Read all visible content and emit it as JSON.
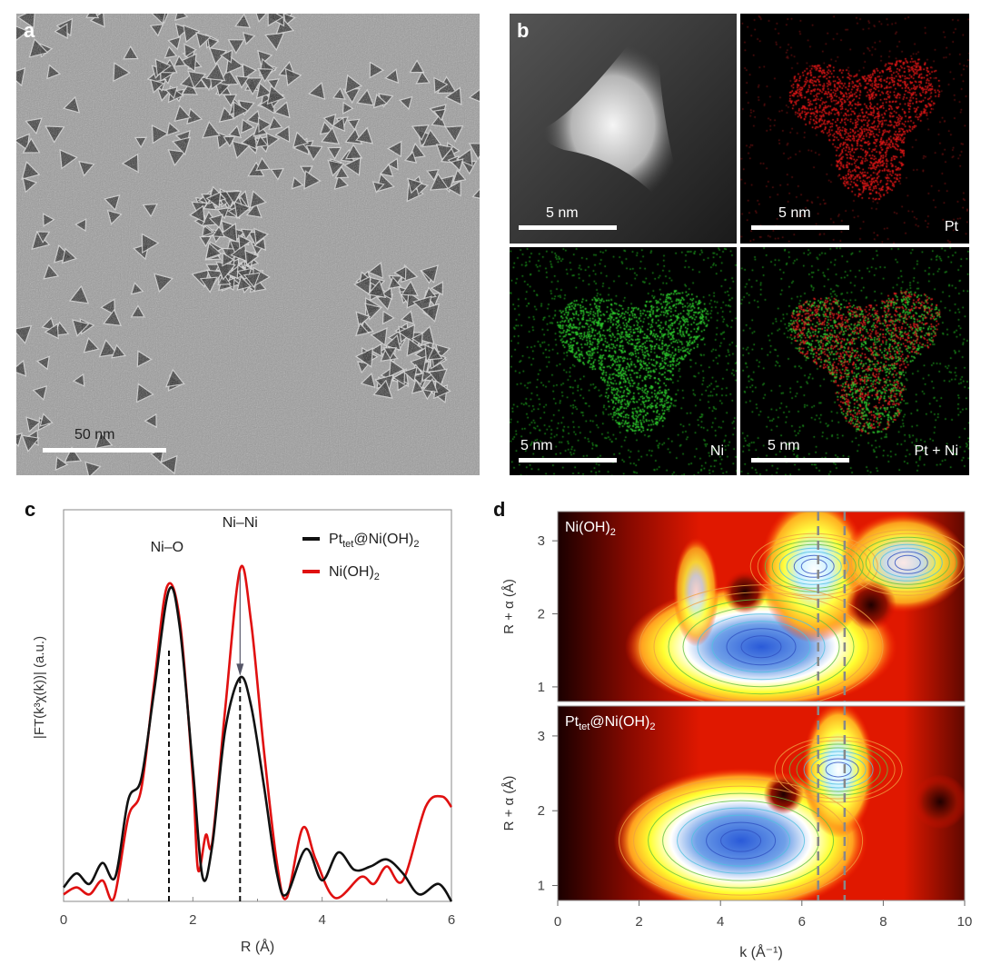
{
  "panels": {
    "a": {
      "label": "a",
      "scalebar": "50 nm"
    },
    "b": {
      "label": "b",
      "tiles": [
        {
          "scalebar": "5 nm",
          "element": ""
        },
        {
          "scalebar": "5 nm",
          "element": "Pt"
        },
        {
          "scalebar": "5 nm",
          "element": "Ni"
        },
        {
          "scalebar": "5 nm",
          "element": "Pt + Ni"
        }
      ]
    },
    "c": {
      "label": "c"
    },
    "d": {
      "label": "d"
    }
  },
  "colors": {
    "black_series": "#111111",
    "red_series": "#e01010",
    "pt_map": "#ff2020",
    "ni_map": "#30e030"
  },
  "chart_data": [
    {
      "type": "line",
      "panel": "c",
      "xlabel": "R (Å)",
      "ylabel": "|FT(k³χ(k))| (a.u.)",
      "xlim": [
        0,
        6
      ],
      "ylim": [
        0,
        1.12
      ],
      "xticks": [
        "0",
        "2",
        "4",
        "6"
      ],
      "annotations": [
        "Ni–O",
        "Ni–Ni"
      ],
      "legend_position": "top-right",
      "series": [
        {
          "name": "Pt_tet@Ni(OH)2",
          "legend_main": "Pt",
          "legend_sub": "tet",
          "legend_rest": "@Ni(OH)",
          "legend_sub2": "2",
          "color": "#111111",
          "x": [
            0,
            0.2,
            0.4,
            0.6,
            0.8,
            1.0,
            1.2,
            1.4,
            1.63,
            1.8,
            2.0,
            2.15,
            2.3,
            2.5,
            2.73,
            2.9,
            3.1,
            3.3,
            3.45,
            3.75,
            4.0,
            4.25,
            4.5,
            4.75,
            5.0,
            5.25,
            5.5,
            5.8,
            6.0
          ],
          "y": [
            0.04,
            0.08,
            0.05,
            0.11,
            0.07,
            0.29,
            0.35,
            0.6,
            0.89,
            0.78,
            0.38,
            0.07,
            0.16,
            0.49,
            0.64,
            0.56,
            0.33,
            0.08,
            0.02,
            0.15,
            0.06,
            0.14,
            0.09,
            0.1,
            0.12,
            0.08,
            0.02,
            0.05,
            0.0
          ]
        },
        {
          "name": "Ni(OH)2",
          "legend_main": "Ni(OH)",
          "legend_sub2": "2",
          "color": "#e01010",
          "x": [
            0,
            0.2,
            0.4,
            0.6,
            0.78,
            1.0,
            1.2,
            1.4,
            1.6,
            1.8,
            2.0,
            2.08,
            2.2,
            2.3,
            2.5,
            2.73,
            2.9,
            3.1,
            3.3,
            3.45,
            3.7,
            3.9,
            4.2,
            4.6,
            4.8,
            5.0,
            5.25,
            5.6,
            5.85,
            6.0
          ],
          "y": [
            0.02,
            0.04,
            0.02,
            0.06,
            0.01,
            0.24,
            0.32,
            0.62,
            0.9,
            0.8,
            0.35,
            0.09,
            0.19,
            0.17,
            0.55,
            0.95,
            0.8,
            0.43,
            0.11,
            0.01,
            0.21,
            0.12,
            0.01,
            0.07,
            0.05,
            0.1,
            0.06,
            0.27,
            0.3,
            0.27
          ]
        }
      ],
      "dashed_lines_x": [
        1.63,
        2.73
      ]
    },
    {
      "type": "heatmap",
      "panel": "d",
      "xlabel": "k (Å⁻¹)",
      "ylabel": "R + α (Å)",
      "xlim": [
        0,
        10
      ],
      "ylim": [
        0.8,
        3.4
      ],
      "xticks": [
        "0",
        "2",
        "4",
        "6",
        "8",
        "10"
      ],
      "yticks": [
        "1",
        "2",
        "3"
      ],
      "dashed_lines_x": [
        6.4,
        7.05
      ],
      "subplots": [
        {
          "title_main": "Ni(OH)",
          "title_sub": "2",
          "maxima": [
            {
              "k": 5.0,
              "R": 1.55
            },
            {
              "k": 6.3,
              "R": 2.65
            },
            {
              "k": 8.6,
              "R": 2.7
            }
          ]
        },
        {
          "title_main": "Pt",
          "title_sub1": "tet",
          "title_rest": "@Ni(OH)",
          "title_sub": "2",
          "maxima": [
            {
              "k": 4.4,
              "R": 1.55
            },
            {
              "k": 7.0,
              "R": 2.6
            }
          ]
        }
      ]
    }
  ]
}
